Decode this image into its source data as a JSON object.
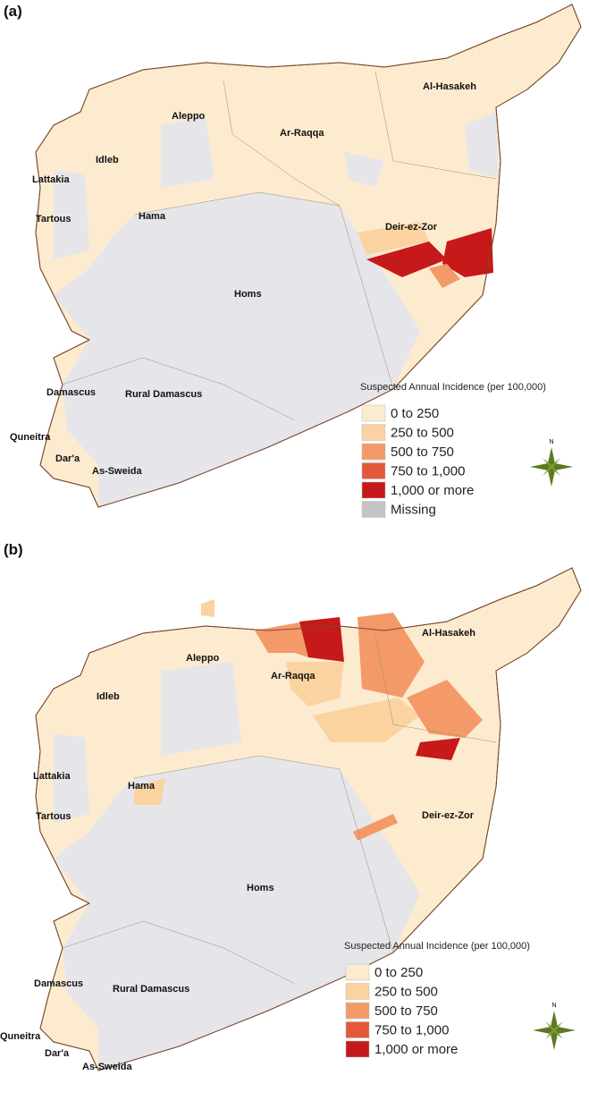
{
  "panels": [
    {
      "label": "(a)",
      "regions": [
        "Aleppo",
        "Ar-Raqqa",
        "Al-Hasakeh",
        "Idleb",
        "Lattakia",
        "Hama",
        "Tartous",
        "Deir-ez-Zor",
        "Homs",
        "Damascus",
        "Rural Damascus",
        "Quneitra",
        "Dar'a",
        "As-Sweida"
      ],
      "legend": {
        "title": "Suspected Annual Incidence (per 100,000)",
        "items": [
          {
            "label": "0 to 250",
            "color": "#fdebd0"
          },
          {
            "label": "250 to 500",
            "color": "#fbd3a0"
          },
          {
            "label": "500 to 750",
            "color": "#f39a68"
          },
          {
            "label": "750 to 1,000",
            "color": "#e4583b"
          },
          {
            "label": "1,000 or more",
            "color": "#c5191a"
          },
          {
            "label": "Missing",
            "color": "#c4c4c4"
          }
        ]
      },
      "compass": "N"
    },
    {
      "label": "(b)",
      "regions": [
        "Aleppo",
        "Ar-Raqqa",
        "Al-Hasakeh",
        "Idleb",
        "Lattakia",
        "Hama",
        "Tartous",
        "Deir-ez-Zor",
        "Homs",
        "Damascus",
        "Rural Damascus",
        "Quneitra",
        "Dar'a",
        "As-Sweida"
      ],
      "legend": {
        "title": "Suspected Annual Incidence (per 100,000)",
        "items": [
          {
            "label": "0 to 250",
            "color": "#fdebd0"
          },
          {
            "label": "250 to 500",
            "color": "#fbd3a0"
          },
          {
            "label": "500 to 750",
            "color": "#f39a68"
          },
          {
            "label": "750 to 1,000",
            "color": "#e4583b"
          },
          {
            "label": "1,000 or more",
            "color": "#c5191a"
          }
        ]
      },
      "compass": "N"
    }
  ]
}
